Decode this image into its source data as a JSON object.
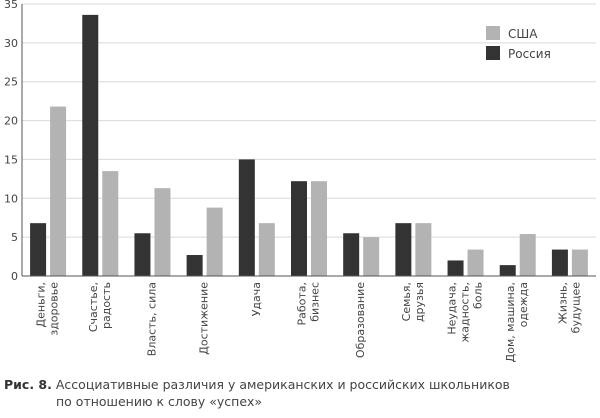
{
  "chart_data": {
    "type": "bar",
    "categories": [
      [
        "Деньги,",
        "здоровье"
      ],
      [
        "Счастье,",
        "радость"
      ],
      [
        "Власть, сила"
      ],
      [
        "Достижение"
      ],
      [
        "Удача"
      ],
      [
        "Работа,",
        "бизнес"
      ],
      [
        "Образование"
      ],
      [
        "Семья,",
        "друзья"
      ],
      [
        "Неудача,",
        "жадность,",
        "боль"
      ],
      [
        "Дом, машина,",
        "одежда"
      ],
      [
        "Жизнь,",
        "будущее"
      ]
    ],
    "series": [
      {
        "name": "Россия",
        "color": "#333333",
        "values": [
          6.8,
          33.6,
          5.5,
          2.7,
          15.0,
          12.2,
          5.5,
          6.8,
          2.0,
          1.4,
          3.4
        ]
      },
      {
        "name": "США",
        "color": "#b3b3b3",
        "values": [
          21.8,
          13.5,
          11.3,
          8.8,
          6.8,
          12.2,
          5.0,
          6.8,
          3.4,
          5.4,
          3.4
        ]
      }
    ],
    "legend": [
      {
        "name": "США",
        "color": "#b3b3b3"
      },
      {
        "name": "Россия",
        "color": "#333333"
      }
    ],
    "legend_position": "top-right",
    "ylim": [
      0,
      35
    ],
    "yticks": [
      "0",
      "5",
      "10",
      "15",
      "20",
      "25",
      "30",
      "35"
    ],
    "grid": true
  },
  "caption": {
    "label": "Рис. 8.",
    "line1": "Ассоциативные различия у американских и российских школьников",
    "line2": "по отношению к слову «успех»"
  }
}
